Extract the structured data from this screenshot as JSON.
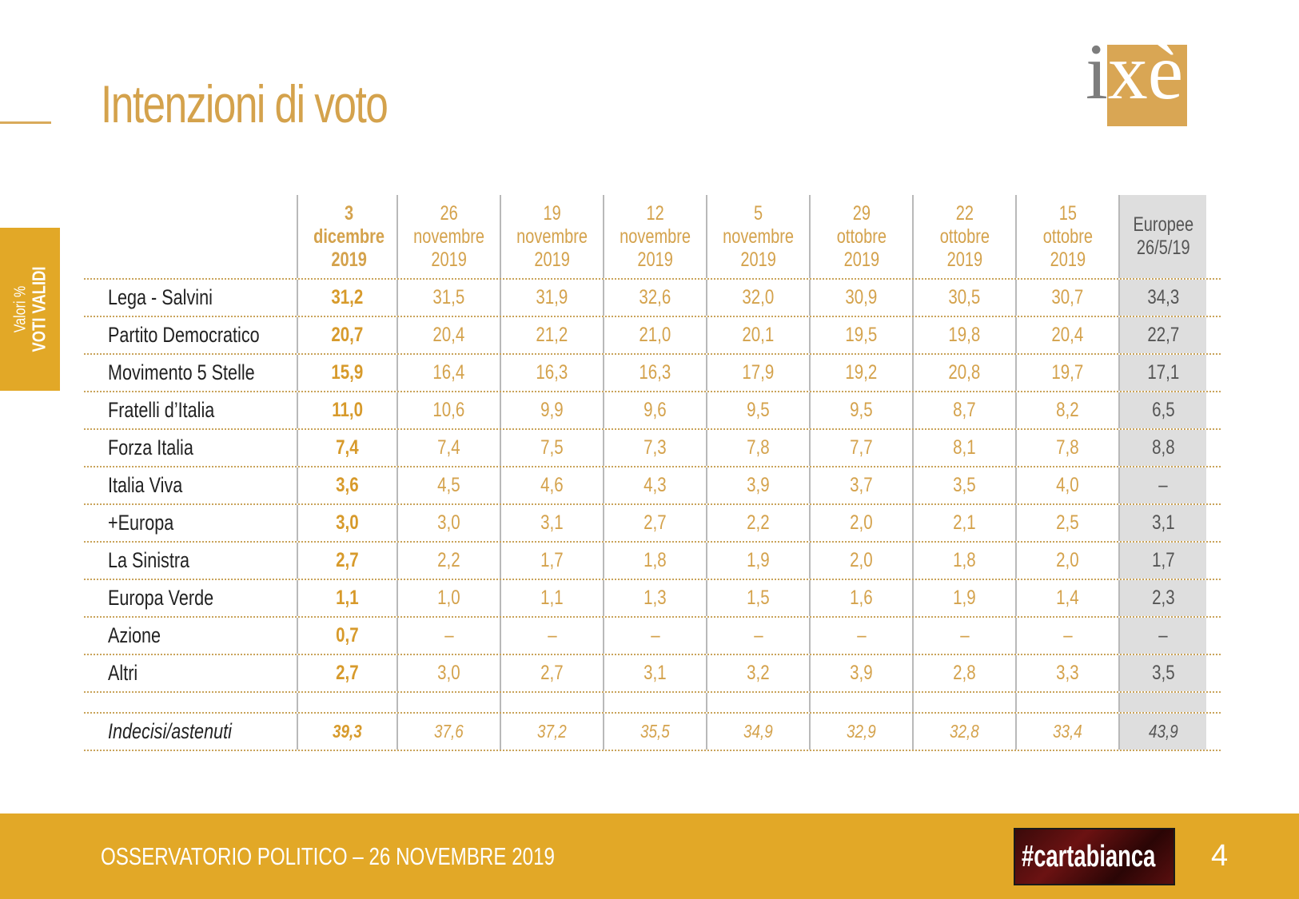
{
  "title": "Intenzioni di voto",
  "logo": {
    "part1": "i",
    "part2": "xè"
  },
  "side_tab": {
    "line1": "Valori %",
    "line2": "VOTI VALIDI"
  },
  "table": {
    "columns": [
      {
        "day": "3",
        "month": "dicembre",
        "year": "2019"
      },
      {
        "day": "26",
        "month": "novembre",
        "year": "2019"
      },
      {
        "day": "19",
        "month": "novembre",
        "year": "2019"
      },
      {
        "day": "12",
        "month": "novembre",
        "year": "2019"
      },
      {
        "day": "5",
        "month": "novembre",
        "year": "2019"
      },
      {
        "day": "29",
        "month": "ottobre",
        "year": "2019"
      },
      {
        "day": "22",
        "month": "ottobre",
        "year": "2019"
      },
      {
        "day": "15",
        "month": "ottobre",
        "year": "2019"
      },
      {
        "day": "Europee",
        "month": "26/5/19",
        "year": ""
      }
    ],
    "rows": [
      {
        "label": "Lega - Salvini",
        "values": [
          "31,2",
          "31,5",
          "31,9",
          "32,6",
          "32,0",
          "30,9",
          "30,5",
          "30,7",
          "34,3"
        ]
      },
      {
        "label": "Partito Democratico",
        "values": [
          "20,7",
          "20,4",
          "21,2",
          "21,0",
          "20,1",
          "19,5",
          "19,8",
          "20,4",
          "22,7"
        ]
      },
      {
        "label": "Movimento 5 Stelle",
        "values": [
          "15,9",
          "16,4",
          "16,3",
          "16,3",
          "17,9",
          "19,2",
          "20,8",
          "19,7",
          "17,1"
        ]
      },
      {
        "label": "Fratelli d’Italia",
        "values": [
          "11,0",
          "10,6",
          "9,9",
          "9,6",
          "9,5",
          "9,5",
          "8,7",
          "8,2",
          "6,5"
        ]
      },
      {
        "label": "Forza Italia",
        "values": [
          "7,4",
          "7,4",
          "7,5",
          "7,3",
          "7,8",
          "7,7",
          "8,1",
          "7,8",
          "8,8"
        ]
      },
      {
        "label": "Italia Viva",
        "values": [
          "3,6",
          "4,5",
          "4,6",
          "4,3",
          "3,9",
          "3,7",
          "3,5",
          "4,0",
          "–"
        ]
      },
      {
        "label": "+Europa",
        "values": [
          "3,0",
          "3,0",
          "3,1",
          "2,7",
          "2,2",
          "2,0",
          "2,1",
          "2,5",
          "3,1"
        ]
      },
      {
        "label": "La Sinistra",
        "values": [
          "2,7",
          "2,2",
          "1,7",
          "1,8",
          "1,9",
          "2,0",
          "1,8",
          "2,0",
          "1,7"
        ]
      },
      {
        "label": "Europa Verde",
        "values": [
          "1,1",
          "1,0",
          "1,1",
          "1,3",
          "1,5",
          "1,6",
          "1,9",
          "1,4",
          "2,3"
        ]
      },
      {
        "label": "Azione",
        "values": [
          "0,7",
          "–",
          "–",
          "–",
          "–",
          "–",
          "–",
          "–",
          "–"
        ]
      },
      {
        "label": "Altri",
        "values": [
          "2,7",
          "3,0",
          "2,7",
          "3,1",
          "3,2",
          "3,9",
          "2,8",
          "3,3",
          "3,5"
        ]
      }
    ],
    "undecided": {
      "label": "Indecisi/astenuti",
      "values": [
        "39,3",
        "37,6",
        "37,2",
        "35,5",
        "34,9",
        "32,9",
        "32,8",
        "33,4",
        "43,9"
      ]
    }
  },
  "footer": {
    "text": "OSSERVATORIO POLITICO – 26 NOVEMBRE 2019",
    "brand": "#cartabianca",
    "page_number": "4"
  }
}
